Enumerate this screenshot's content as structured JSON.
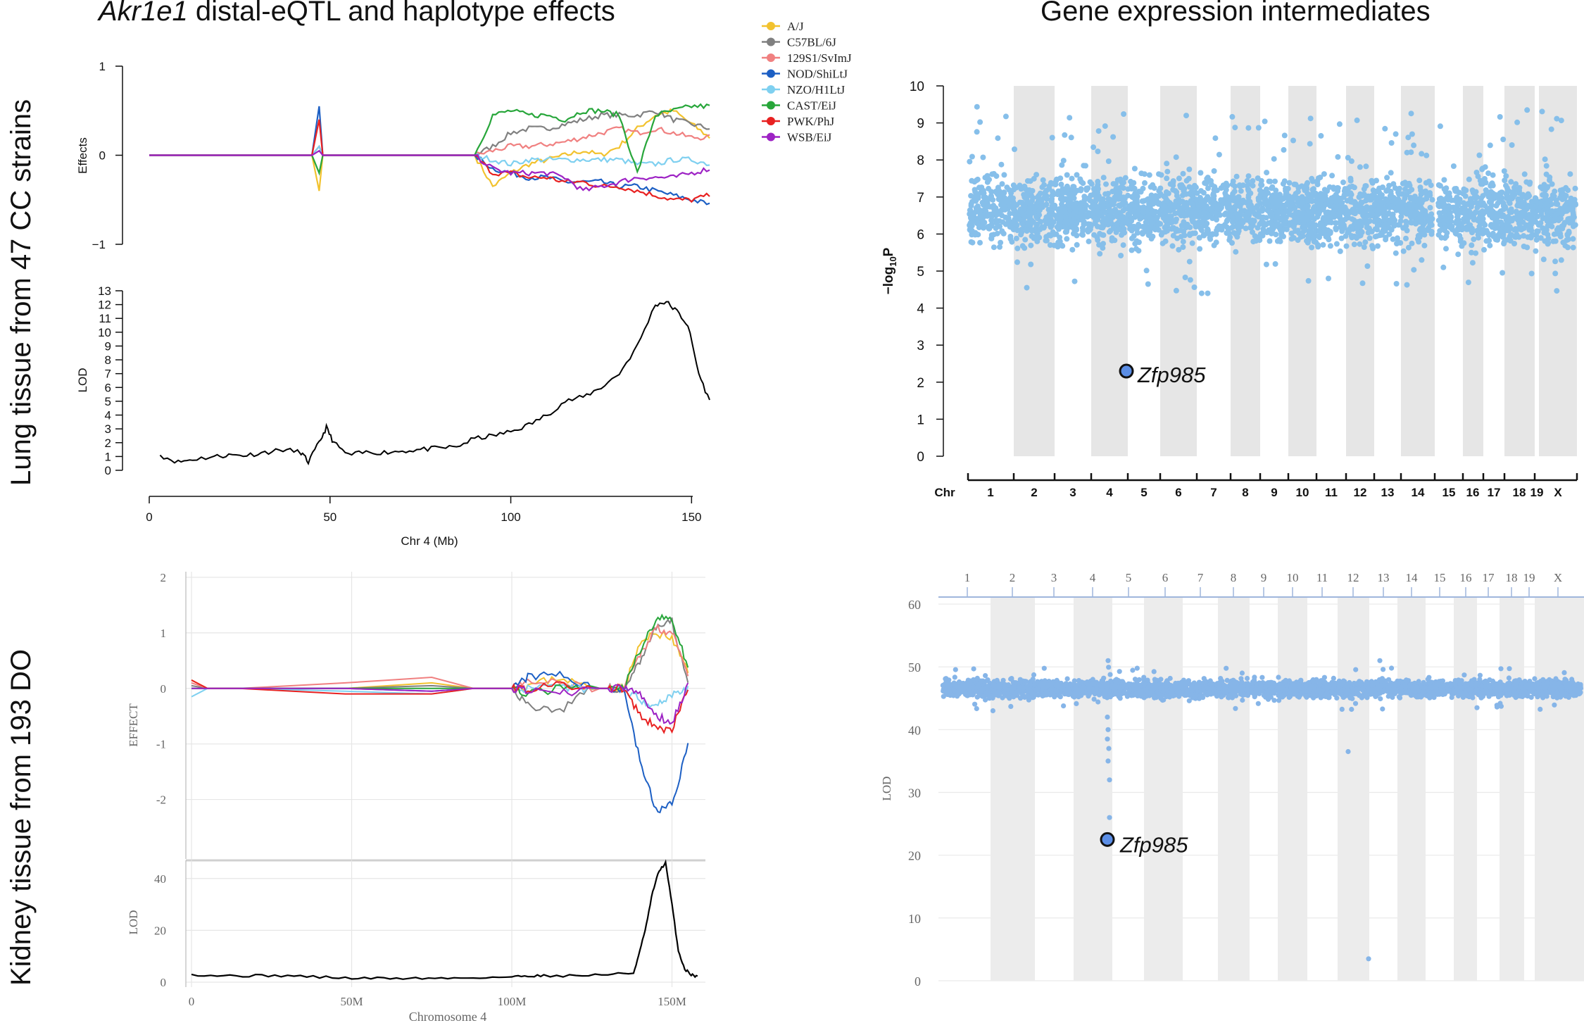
{
  "titles": {
    "left_gene": "Akr1e1",
    "left_rest": " distal-eQTL and haplotype effects",
    "right": "Gene expression intermediates"
  },
  "row_labels": {
    "top": "Lung tissue from 47 CC strains",
    "bottom": "Kidney tissue from 193 DO"
  },
  "legend": [
    {
      "name": "A/J",
      "color": "#f2c22e"
    },
    {
      "name": "C57BL/6J",
      "color": "#808080"
    },
    {
      "name": "129S1/SvImJ",
      "color": "#f08080"
    },
    {
      "name": "NOD/ShiLtJ",
      "color": "#1c5fc4"
    },
    {
      "name": "NZO/H1LtJ",
      "color": "#7fd0f0"
    },
    {
      "name": "CAST/EiJ",
      "color": "#27a63a"
    },
    {
      "name": "PWK/PhJ",
      "color": "#e82121"
    },
    {
      "name": "WSB/EiJ",
      "color": "#9d22c4"
    }
  ],
  "annotations": {
    "gene": "Zfp985"
  },
  "chart_data": [
    {
      "id": "cc_effects",
      "type": "line",
      "ylabel": "Effects",
      "ylim": [
        -1,
        1
      ],
      "yticks": [
        "-1",
        "0",
        "1"
      ],
      "x": [
        0,
        45,
        47,
        48,
        90,
        95,
        100,
        105,
        110,
        115,
        120,
        125,
        130,
        135,
        140,
        145,
        150,
        155
      ],
      "series": [
        {
          "name": "A/J",
          "values": [
            0,
            0,
            -0.4,
            0,
            0,
            -0.35,
            -0.2,
            -0.1,
            -0.05,
            0.0,
            0.05,
            0.0,
            0.1,
            0.3,
            0.45,
            0.5,
            0.35,
            0.2
          ]
        },
        {
          "name": "C57BL/6J",
          "values": [
            0,
            0,
            0.1,
            0,
            0,
            0.1,
            0.25,
            0.3,
            0.3,
            0.35,
            0.4,
            0.45,
            0.45,
            0.45,
            0.5,
            0.4,
            0.35,
            0.3
          ]
        },
        {
          "name": "129S1/SvImJ",
          "values": [
            0,
            0,
            0.1,
            0,
            0,
            0.05,
            0.1,
            0.1,
            0.12,
            0.15,
            0.2,
            0.25,
            0.3,
            0.25,
            0.3,
            0.25,
            0.2,
            0.2
          ]
        },
        {
          "name": "NOD/ShiLtJ",
          "values": [
            0,
            0,
            0.55,
            0,
            0,
            -0.15,
            -0.2,
            -0.25,
            -0.25,
            -0.3,
            -0.3,
            -0.3,
            -0.35,
            -0.35,
            -0.4,
            -0.45,
            -0.5,
            -0.55
          ]
        },
        {
          "name": "NZO/H1LtJ",
          "values": [
            0,
            0,
            0.1,
            0,
            0,
            -0.05,
            -0.1,
            -0.05,
            -0.05,
            -0.05,
            -0.05,
            -0.05,
            -0.05,
            -0.1,
            -0.1,
            -0.05,
            -0.05,
            -0.1
          ]
        },
        {
          "name": "CAST/EiJ",
          "values": [
            0,
            0,
            -0.2,
            0,
            0,
            0.45,
            0.5,
            0.45,
            0.45,
            0.4,
            0.5,
            0.5,
            0.45,
            -0.2,
            0.45,
            0.5,
            0.55,
            0.55
          ]
        },
        {
          "name": "PWK/PhJ",
          "values": [
            0,
            0,
            0.4,
            0,
            0,
            -0.2,
            -0.2,
            -0.25,
            -0.25,
            -0.3,
            -0.3,
            -0.35,
            -0.35,
            -0.4,
            -0.45,
            -0.5,
            -0.5,
            -0.45
          ]
        },
        {
          "name": "WSB/EiJ",
          "values": [
            0,
            0,
            0.05,
            0,
            0,
            -0.15,
            -0.2,
            -0.2,
            -0.2,
            -0.25,
            -0.4,
            -0.35,
            -0.3,
            -0.25,
            -0.25,
            -0.25,
            -0.2,
            -0.15
          ]
        }
      ]
    },
    {
      "id": "cc_lod",
      "type": "line",
      "ylabel": "LOD",
      "xlabel": "Chr 4 (Mb)",
      "xlim": [
        0,
        155
      ],
      "ylim": [
        0,
        13
      ],
      "yticks": [
        "0",
        "1",
        "2",
        "3",
        "4",
        "5",
        "6",
        "7",
        "8",
        "9",
        "10",
        "11",
        "12",
        "13"
      ],
      "xticks": [
        "0",
        "50",
        "100",
        "150"
      ],
      "x": [
        3,
        8,
        12,
        18,
        22,
        27,
        32,
        37,
        42,
        44,
        47,
        49,
        51,
        55,
        60,
        65,
        70,
        75,
        80,
        85,
        90,
        95,
        100,
        105,
        110,
        115,
        120,
        125,
        130,
        135,
        140,
        143,
        146,
        149,
        152,
        155
      ],
      "values": [
        1.1,
        0.6,
        0.8,
        1.0,
        1.1,
        1.1,
        1.3,
        1.5,
        1.3,
        0.6,
        2.0,
        3.1,
        2.0,
        1.1,
        1.3,
        1.3,
        1.4,
        1.5,
        1.6,
        1.7,
        2.3,
        2.5,
        2.8,
        3.3,
        4.0,
        5.0,
        5.3,
        6.0,
        7.0,
        9.0,
        12.0,
        12.2,
        11.5,
        10.5,
        7.0,
        5.0
      ]
    },
    {
      "id": "do_effects",
      "type": "line",
      "ylabel": "EFFECT",
      "ylim": [
        -2.5,
        2
      ],
      "yticks": [
        "2",
        "1",
        "0",
        "-1",
        "-2"
      ],
      "x": [
        0,
        5,
        15,
        48,
        75,
        88,
        95,
        100,
        105,
        115,
        125,
        130,
        135,
        140,
        145,
        150,
        155
      ],
      "series": [
        {
          "name": "A/J",
          "values": [
            0.15,
            0,
            0,
            0,
            0.1,
            0,
            0,
            0,
            0.05,
            0.2,
            0,
            0,
            0,
            0.8,
            1.0,
            0.9,
            0.3
          ]
        },
        {
          "name": "C57BL/6J",
          "values": [
            0.05,
            0,
            0,
            0,
            0.05,
            0,
            0,
            0,
            -0.3,
            -0.4,
            0,
            0,
            0,
            0.5,
            1.1,
            1.2,
            0.1
          ]
        },
        {
          "name": "129S1/SvImJ",
          "values": [
            0.1,
            0,
            0,
            0.1,
            0.2,
            0,
            0,
            0,
            0.1,
            0.1,
            0,
            0,
            0,
            0.6,
            1.1,
            1.0,
            0.2
          ]
        },
        {
          "name": "NOD/ShiLtJ",
          "values": [
            0,
            0,
            0,
            0,
            -0.05,
            0,
            0,
            0,
            0.2,
            0.25,
            0,
            0,
            0,
            -1.3,
            -2.2,
            -2.1,
            -1.0
          ]
        },
        {
          "name": "NZO/H1LtJ",
          "values": [
            -0.15,
            0,
            0,
            -0.05,
            -0.1,
            0,
            0,
            0,
            0,
            0,
            0,
            0,
            0,
            -0.2,
            -0.3,
            -0.1,
            0
          ]
        },
        {
          "name": "CAST/EiJ",
          "values": [
            0,
            0,
            0,
            0,
            0,
            0,
            0,
            0,
            -0.1,
            0,
            0,
            0,
            0,
            0.7,
            1.25,
            1.25,
            0.4
          ]
        },
        {
          "name": "PWK/PhJ",
          "values": [
            0.15,
            0,
            0,
            -0.1,
            -0.1,
            0,
            0,
            0,
            0,
            0.05,
            0,
            0,
            0,
            -0.5,
            -0.7,
            -0.75,
            0
          ]
        },
        {
          "name": "WSB/EiJ",
          "values": [
            0,
            0,
            0,
            0,
            -0.05,
            0,
            0,
            0,
            -0.05,
            -0.1,
            0,
            0,
            0,
            -0.1,
            -0.5,
            -0.6,
            0.05
          ]
        }
      ]
    },
    {
      "id": "do_lod",
      "type": "line",
      "ylabel": "LOD",
      "xlabel": "Chromosome 4",
      "xlim": [
        0,
        160
      ],
      "ylim": [
        0,
        47
      ],
      "yticks": [
        "0",
        "20",
        "40"
      ],
      "xticks": [
        "0",
        "50M",
        "100M",
        "150M"
      ],
      "x": [
        0,
        10,
        20,
        30,
        40,
        50,
        60,
        70,
        80,
        90,
        100,
        105,
        110,
        120,
        130,
        138,
        140,
        142,
        144,
        146,
        148,
        150,
        152,
        154,
        156,
        158
      ],
      "values": [
        3,
        2.5,
        2.5,
        2.5,
        2,
        1.5,
        1.5,
        1.5,
        1.5,
        1.8,
        2,
        2.5,
        2.5,
        2.5,
        3,
        3.5,
        12,
        22,
        35,
        43,
        46,
        30,
        12,
        5,
        3,
        2
      ]
    },
    {
      "id": "cc_mediation",
      "type": "scatter",
      "ylabel": "−log10P",
      "xlabel": "Chr",
      "ylim": [
        0,
        10
      ],
      "yticks": [
        "0",
        "1",
        "2",
        "3",
        "4",
        "5",
        "6",
        "7",
        "8",
        "9",
        "10"
      ],
      "chromosomes": [
        "1",
        "2",
        "3",
        "4",
        "5",
        "6",
        "7",
        "8",
        "9",
        "10",
        "11",
        "12",
        "13",
        "14",
        "15",
        "16",
        "17",
        "18",
        "19",
        "X"
      ],
      "baseline": 6.6,
      "highlight": {
        "label": "Zfp985",
        "chr": "4",
        "y": 2.3
      }
    },
    {
      "id": "do_mediation",
      "type": "scatter",
      "ylabel": "LOD",
      "ylim": [
        0,
        60
      ],
      "yticks": [
        "0",
        "10",
        "20",
        "30",
        "40",
        "50",
        "60"
      ],
      "chromosomes": [
        "1",
        "2",
        "3",
        "4",
        "5",
        "6",
        "7",
        "8",
        "9",
        "10",
        "11",
        "12",
        "13",
        "14",
        "15",
        "16",
        "17",
        "18",
        "19",
        "X"
      ],
      "baseline": 46.5,
      "highlight": {
        "label": "Zfp985",
        "chr": "4",
        "y": 22.5
      }
    }
  ]
}
